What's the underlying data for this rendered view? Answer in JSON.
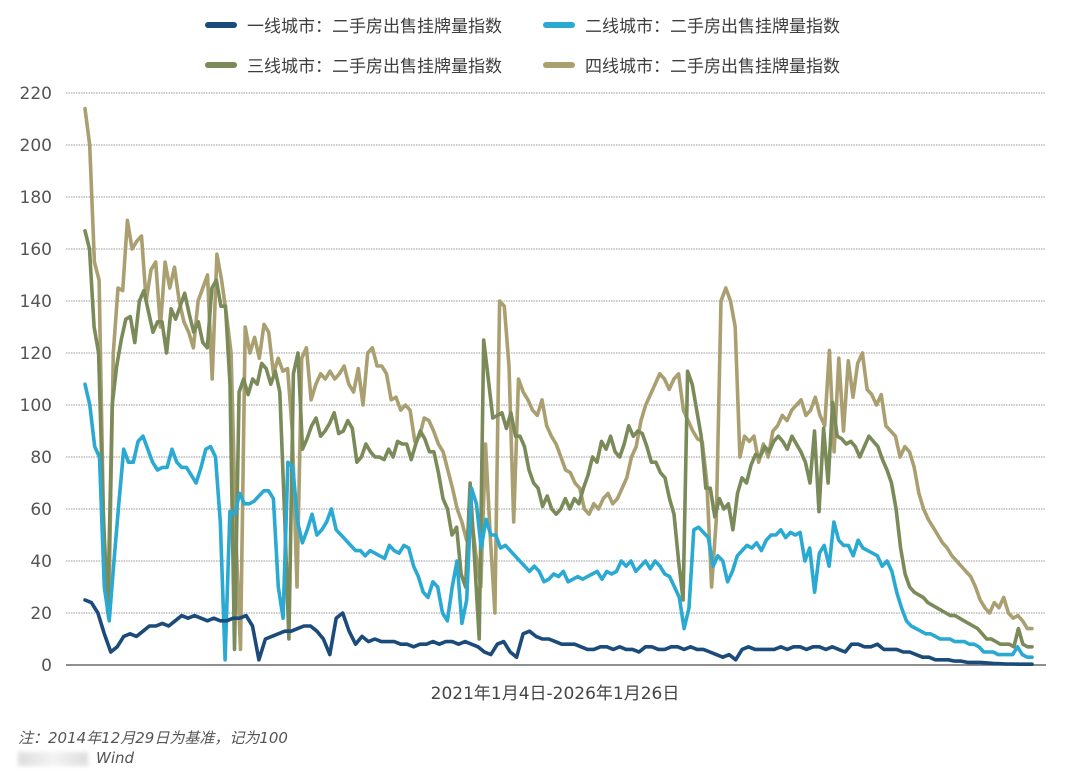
{
  "chart_data": {
    "type": "line",
    "title": "",
    "xlabel": "2021年1月4日-2026年1月26日",
    "ylabel": "",
    "ylim": [
      0,
      220
    ],
    "yticks": [
      0,
      20,
      40,
      60,
      80,
      100,
      120,
      140,
      160,
      180,
      200,
      220
    ],
    "grid": true,
    "legend_position": "top",
    "x_range": [
      "2021-01-04",
      "2026-01-26"
    ],
    "x_frequency": "weekly (approx. 110 sampled points)",
    "series": [
      {
        "name": "一线城市：二手房出售挂牌量指数",
        "color": "#1b4b7a",
        "values": [
          25,
          24,
          20,
          12,
          5,
          7,
          11,
          12,
          11,
          13,
          15,
          15,
          16,
          15,
          17,
          19,
          18,
          19,
          18,
          17,
          18,
          17,
          17,
          18,
          18,
          19,
          15,
          2,
          10,
          11,
          12,
          13,
          13,
          14,
          15,
          15,
          13,
          10,
          4,
          18,
          20,
          13,
          8,
          11,
          9,
          10,
          9,
          9,
          9,
          8,
          8,
          7,
          8,
          8,
          9,
          8,
          9,
          9,
          8,
          9,
          8,
          7,
          5,
          4,
          8,
          9,
          5,
          3,
          12,
          13,
          11,
          10,
          10,
          9,
          8,
          8,
          8,
          7,
          6,
          6,
          7,
          7,
          6,
          7,
          6,
          6,
          5,
          7,
          7,
          6,
          6,
          7,
          7,
          6,
          7,
          6,
          6,
          5,
          4,
          3,
          4,
          2,
          6,
          7,
          6,
          6,
          6,
          6,
          7,
          6,
          7,
          7,
          6,
          7,
          7,
          6,
          7,
          6,
          5,
          8,
          8,
          7,
          7,
          8,
          6,
          6,
          6,
          5,
          5,
          4,
          3,
          3,
          2,
          2,
          2,
          1.5,
          1.5,
          1,
          1,
          1,
          0.8,
          0.6,
          0.5,
          0.4,
          0.4,
          0.3,
          0.3,
          0.3
        ]
      },
      {
        "name": "二线城市：二手房出售挂牌量指数",
        "color": "#2aa9d2",
        "values": [
          108,
          100,
          84,
          80,
          30,
          17,
          40,
          62,
          83,
          78,
          78,
          86,
          88,
          83,
          78,
          75,
          76,
          76,
          83,
          78,
          76,
          76,
          73,
          70,
          76,
          83,
          84,
          80,
          55,
          2,
          59,
          58,
          66,
          62,
          62,
          63,
          65,
          67,
          67,
          64,
          30,
          18,
          78,
          76,
          55,
          47,
          52,
          58,
          50,
          52,
          55,
          60,
          52,
          50,
          48,
          46,
          44,
          44,
          42,
          44,
          43,
          42,
          41,
          46,
          44,
          43,
          46,
          45,
          38,
          34,
          28,
          26,
          32,
          30,
          20,
          17,
          30,
          40,
          16,
          25,
          68,
          62,
          45,
          56,
          50,
          50,
          45,
          46,
          44,
          42,
          40,
          38,
          36,
          38,
          36,
          32,
          33,
          35,
          34,
          36,
          32,
          33,
          34,
          33,
          34,
          35,
          36,
          33,
          36,
          35,
          36,
          40,
          38,
          40,
          36,
          38,
          40,
          37,
          40,
          38,
          35,
          34,
          30,
          26,
          14,
          22,
          52,
          53,
          51,
          49,
          38,
          42,
          40,
          32,
          36,
          42,
          44,
          46,
          45,
          47,
          44,
          48,
          50,
          50,
          52,
          49,
          51,
          50,
          51,
          40,
          45,
          28,
          43,
          46,
          38,
          55,
          48,
          46,
          46,
          42,
          48,
          45,
          44,
          43,
          42,
          38,
          40,
          36,
          28,
          22,
          17,
          15,
          14,
          13,
          12,
          12,
          11,
          10,
          10,
          10,
          9,
          9,
          9,
          8,
          8,
          7,
          5,
          5,
          5,
          4,
          4,
          4,
          4,
          7,
          4,
          3,
          3
        ]
      },
      {
        "name": "三线城市：二手房出售挂牌量指数",
        "color": "#7a8a58",
        "values": [
          167,
          160,
          130,
          120,
          60,
          20,
          100,
          115,
          125,
          133,
          134,
          124,
          140,
          144,
          136,
          128,
          132,
          132,
          120,
          137,
          133,
          138,
          143,
          135,
          128,
          132,
          124,
          122,
          145,
          148,
          138,
          138,
          108,
          6,
          105,
          110,
          104,
          110,
          108,
          116,
          114,
          108,
          113,
          105,
          60,
          10,
          112,
          120,
          83,
          87,
          92,
          95,
          88,
          90,
          93,
          97,
          89,
          90,
          94,
          91,
          78,
          80,
          85,
          82,
          80,
          80,
          79,
          83,
          80,
          86,
          85,
          85,
          79,
          85,
          90,
          87,
          82,
          82,
          74,
          64,
          60,
          50,
          53,
          35,
          30,
          70,
          40,
          10,
          125,
          110,
          95,
          96,
          97,
          91,
          97,
          88,
          88,
          84,
          75,
          70,
          68,
          61,
          65,
          60,
          58,
          60,
          64,
          60,
          64,
          62,
          68,
          73,
          80,
          78,
          86,
          83,
          88,
          82,
          80,
          85,
          92,
          88,
          90,
          89,
          84,
          78,
          78,
          74,
          72,
          64,
          58,
          40,
          25,
          113,
          108,
          98,
          88,
          68,
          68,
          57,
          64,
          60,
          62,
          52,
          66,
          72,
          70,
          77,
          81,
          80,
          84,
          82,
          86,
          88,
          86,
          83,
          88,
          85,
          82,
          78,
          70,
          90,
          59,
          91,
          70,
          101,
          88,
          87,
          85,
          86,
          84,
          80,
          84,
          88,
          86,
          84,
          79,
          75,
          70,
          60,
          45,
          35,
          30,
          28,
          27,
          26,
          24,
          23,
          22,
          21,
          20,
          19,
          19,
          18,
          17,
          16,
          15,
          14,
          12,
          10,
          10,
          9,
          8,
          8,
          8,
          7,
          14,
          8,
          7,
          7
        ]
      },
      {
        "name": "四线城市：二手房出售挂牌量指数",
        "color": "#aa9f70",
        "values": [
          214,
          200,
          155,
          148,
          50,
          18,
          120,
          145,
          144,
          171,
          160,
          163,
          165,
          140,
          152,
          155,
          130,
          155,
          145,
          153,
          140,
          132,
          128,
          122,
          140,
          145,
          150,
          110,
          158,
          148,
          135,
          120,
          50,
          6,
          130,
          120,
          126,
          118,
          131,
          128,
          112,
          118,
          113,
          114,
          90,
          30,
          118,
          122,
          102,
          108,
          112,
          110,
          113,
          110,
          112,
          115,
          108,
          105,
          114,
          100,
          120,
          122,
          115,
          115,
          112,
          102,
          103,
          98,
          100,
          98,
          86,
          88,
          95,
          94,
          90,
          85,
          82,
          75,
          68,
          60,
          55,
          48,
          58,
          42,
          30,
          85,
          50,
          20,
          140,
          138,
          115,
          55,
          110,
          105,
          102,
          98,
          96,
          102,
          92,
          88,
          85,
          80,
          75,
          74,
          70,
          68,
          60,
          58,
          62,
          60,
          64,
          66,
          62,
          64,
          68,
          72,
          80,
          84,
          94,
          100,
          104,
          108,
          112,
          110,
          106,
          110,
          112,
          98,
          94,
          90,
          87,
          86,
          70,
          30,
          56,
          140,
          145,
          140,
          130,
          80,
          88,
          86,
          88,
          78,
          85,
          80,
          90,
          92,
          96,
          94,
          98,
          100,
          102,
          96,
          98,
          103,
          96,
          92,
          121,
          82,
          118,
          90,
          117,
          103,
          116,
          120,
          106,
          104,
          100,
          104,
          92,
          90,
          88,
          80,
          84,
          82,
          76,
          66,
          60,
          56,
          53,
          50,
          47,
          45,
          42,
          40,
          38,
          36,
          34,
          30,
          25,
          22,
          20,
          24,
          22,
          26,
          20,
          18,
          19,
          17,
          14,
          14
        ]
      }
    ]
  },
  "legend": {
    "items": [
      {
        "label": "一线城市：二手房出售挂牌量指数",
        "color": "#1b4b7a"
      },
      {
        "label": "二线城市：二手房出售挂牌量指数",
        "color": "#2aa9d2"
      },
      {
        "label": "三线城市：二手房出售挂牌量指数",
        "color": "#7a8a58"
      },
      {
        "label": "四线城市：二手房出售挂牌量指数",
        "color": "#aa9f70"
      }
    ]
  },
  "axis": {
    "x_label": "2021年1月4日-2026年1月26日",
    "y_ticks": [
      "0",
      "20",
      "40",
      "60",
      "80",
      "100",
      "120",
      "140",
      "160",
      "180",
      "200",
      "220"
    ]
  },
  "footer": {
    "note": "注：2014年12月29日为基准，记为100",
    "source": "Wind"
  }
}
